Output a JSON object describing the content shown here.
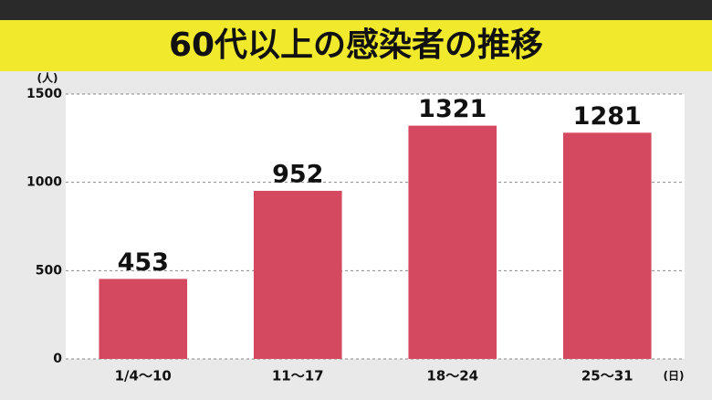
{
  "chart_data": {
    "type": "bar",
    "title": "60代以上の感染者の推移",
    "y_unit": "(人)",
    "x_unit": "(日)",
    "categories": [
      "1/4〜10",
      "11〜17",
      "18〜24",
      "25〜31"
    ],
    "values": [
      453,
      952,
      1321,
      1281
    ],
    "color": "#d4495f",
    "ylim": [
      0,
      1500
    ],
    "yticks": [
      0,
      500,
      1000,
      1500
    ],
    "grid": true
  }
}
